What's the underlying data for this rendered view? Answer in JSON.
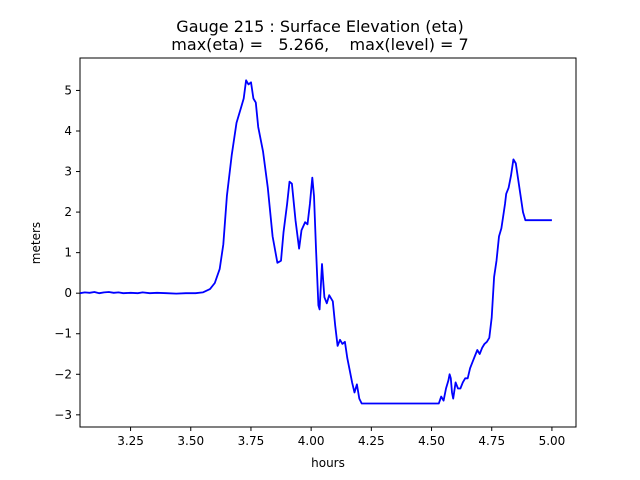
{
  "chart_data": {
    "type": "line",
    "title": "Gauge 215 : Surface Elevation (eta)",
    "subtitle": "max(eta) =   5.266,    max(level) = 7",
    "xlabel": "hours",
    "ylabel": "meters",
    "xlim": [
      3.04,
      5.1
    ],
    "ylim": [
      -3.3,
      5.8
    ],
    "xticks": [
      3.25,
      3.5,
      3.75,
      4.0,
      4.25,
      4.5,
      4.75,
      5.0
    ],
    "xtick_labels": [
      "3.25",
      "3.50",
      "3.75",
      "4.00",
      "4.25",
      "4.50",
      "4.75",
      "5.00"
    ],
    "yticks": [
      -3,
      -2,
      -1,
      0,
      1,
      2,
      3,
      4,
      5
    ],
    "ytick_labels": [
      "−3",
      "−2",
      "−1",
      "0",
      "1",
      "2",
      "3",
      "4",
      "5"
    ],
    "grid": false,
    "series": [
      {
        "color": "#0000ff",
        "x": [
          3.04,
          3.06,
          3.08,
          3.1,
          3.12,
          3.14,
          3.16,
          3.18,
          3.2,
          3.22,
          3.25,
          3.28,
          3.3,
          3.33,
          3.36,
          3.4,
          3.44,
          3.48,
          3.52,
          3.55,
          3.58,
          3.6,
          3.62,
          3.635,
          3.65,
          3.67,
          3.69,
          3.71,
          3.72,
          3.73,
          3.74,
          3.75,
          3.76,
          3.77,
          3.78,
          3.8,
          3.82,
          3.84,
          3.86,
          3.875,
          3.885,
          3.9,
          3.91,
          3.92,
          3.93,
          3.935,
          3.95,
          3.96,
          3.975,
          3.985,
          3.995,
          4.005,
          4.012,
          4.02,
          4.03,
          4.035,
          4.045,
          4.05,
          4.055,
          4.065,
          4.075,
          4.09,
          4.1,
          4.11,
          4.12,
          4.13,
          4.14,
          4.15,
          4.16,
          4.17,
          4.18,
          4.19,
          4.2,
          4.21,
          4.22,
          4.23,
          4.24,
          4.25,
          4.3,
          4.35,
          4.4,
          4.45,
          4.5,
          4.53,
          4.54,
          4.55,
          4.56,
          4.57,
          4.575,
          4.58,
          4.585,
          4.59,
          4.6,
          4.61,
          4.62,
          4.63,
          4.64,
          4.65,
          4.66,
          4.67,
          4.68,
          4.69,
          4.7,
          4.71,
          4.72,
          4.73,
          4.74,
          4.75,
          4.76,
          4.77,
          4.78,
          4.79,
          4.8,
          4.805,
          4.81,
          4.82,
          4.83,
          4.84,
          4.85,
          4.86,
          4.87,
          4.88,
          4.89,
          4.9,
          4.91,
          4.92,
          4.93,
          4.94,
          4.95,
          4.955,
          4.96,
          4.97,
          4.98,
          4.99,
          5.0
        ],
        "y": [
          0.0,
          0.02,
          0.01,
          0.03,
          0.0,
          0.02,
          0.03,
          0.01,
          0.02,
          0.0,
          0.01,
          0.0,
          0.02,
          0.0,
          0.01,
          0.0,
          -0.01,
          0.0,
          0.0,
          0.02,
          0.1,
          0.25,
          0.6,
          1.2,
          2.4,
          3.4,
          4.2,
          4.6,
          4.8,
          5.25,
          5.15,
          5.2,
          4.8,
          4.7,
          4.1,
          3.5,
          2.6,
          1.4,
          0.75,
          0.8,
          1.5,
          2.2,
          2.75,
          2.7,
          2.1,
          1.8,
          1.1,
          1.55,
          1.75,
          1.7,
          2.2,
          2.85,
          2.4,
          1.1,
          -0.3,
          -0.4,
          0.72,
          0.3,
          -0.1,
          -0.25,
          -0.05,
          -0.2,
          -0.8,
          -1.3,
          -1.15,
          -1.25,
          -1.2,
          -1.6,
          -1.9,
          -2.2,
          -2.45,
          -2.25,
          -2.6,
          -2.72,
          -2.72,
          -2.72,
          -2.72,
          -2.72,
          -2.72,
          -2.72,
          -2.72,
          -2.72,
          -2.72,
          -2.72,
          -2.55,
          -2.65,
          -2.35,
          -2.15,
          -2.0,
          -2.1,
          -2.45,
          -2.6,
          -2.2,
          -2.35,
          -2.35,
          -2.2,
          -2.1,
          -2.1,
          -1.85,
          -1.7,
          -1.55,
          -1.4,
          -1.5,
          -1.35,
          -1.25,
          -1.2,
          -1.1,
          -0.6,
          0.4,
          0.8,
          1.4,
          1.6,
          2.0,
          2.2,
          2.45,
          2.6,
          2.9,
          3.3,
          3.2,
          2.8,
          2.4,
          2.0,
          1.8,
          1.8,
          1.8,
          1.8,
          1.8,
          1.8,
          1.8,
          1.8,
          1.8,
          1.8,
          1.8,
          1.8,
          1.8
        ]
      }
    ]
  }
}
